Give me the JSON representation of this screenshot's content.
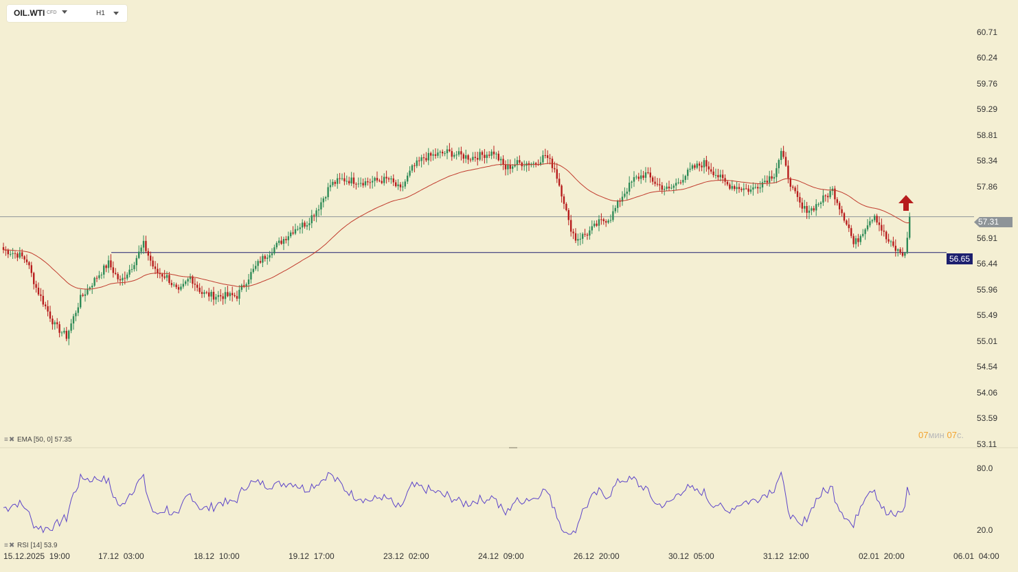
{
  "toolbar": {
    "symbol": "OIL.WTI",
    "symbol_type": "CFD",
    "timeframe": "H1"
  },
  "chart_data": [
    {
      "type": "candlestick",
      "instrument": "OIL.WTI",
      "timeframe": "H1",
      "y_ticks": [
        "60.71",
        "60.24",
        "59.76",
        "59.29",
        "58.81",
        "58.34",
        "57.86",
        "56.91",
        "56.44",
        "55.96",
        "55.49",
        "55.01",
        "54.54",
        "54.06",
        "53.59",
        "53.11"
      ],
      "ylim": [
        53.11,
        61.3
      ],
      "x_ticks": [
        "15.12.2025  19:00",
        "17.12  03:00",
        "18.12  10:00",
        "19.12  17:00",
        "23.12  02:00",
        "24.12  09:00",
        "26.12  20:00",
        "30.12  05:00",
        "31.12  12:00",
        "02.01  20:00",
        "06.01  04:00"
      ],
      "current_price": "57.31",
      "horizontal_line_price": "56.65",
      "close_anchors": [
        [
          0,
          56.7
        ],
        [
          7,
          56.6
        ],
        [
          10,
          56.5
        ],
        [
          14,
          56.0
        ],
        [
          22,
          55.3
        ],
        [
          27,
          55.1
        ],
        [
          33,
          55.8
        ],
        [
          40,
          56.2
        ],
        [
          45,
          56.45
        ],
        [
          50,
          56.1
        ],
        [
          55,
          56.4
        ],
        [
          60,
          56.8
        ],
        [
          65,
          56.3
        ],
        [
          70,
          56.2
        ],
        [
          75,
          55.9
        ],
        [
          80,
          56.2
        ],
        [
          85,
          55.9
        ],
        [
          90,
          55.85
        ],
        [
          100,
          55.85
        ],
        [
          105,
          56.2
        ],
        [
          110,
          56.5
        ],
        [
          115,
          56.7
        ],
        [
          120,
          56.9
        ],
        [
          125,
          57.1
        ],
        [
          130,
          57.2
        ],
        [
          135,
          57.5
        ],
        [
          140,
          57.9
        ],
        [
          145,
          58.0
        ],
        [
          155,
          57.95
        ],
        [
          165,
          58.0
        ],
        [
          170,
          57.8
        ],
        [
          175,
          58.2
        ],
        [
          180,
          58.4
        ],
        [
          190,
          58.5
        ],
        [
          200,
          58.4
        ],
        [
          210,
          58.5
        ],
        [
          215,
          58.2
        ],
        [
          220,
          58.3
        ],
        [
          228,
          58.3
        ],
        [
          232,
          58.45
        ],
        [
          236,
          58.2
        ],
        [
          240,
          57.6
        ],
        [
          242,
          57.2
        ],
        [
          245,
          56.9
        ],
        [
          250,
          57.0
        ],
        [
          255,
          57.2
        ],
        [
          260,
          57.3
        ],
        [
          265,
          57.7
        ],
        [
          270,
          58.0
        ],
        [
          275,
          58.1
        ],
        [
          280,
          57.9
        ],
        [
          285,
          57.8
        ],
        [
          290,
          58.0
        ],
        [
          295,
          58.2
        ],
        [
          300,
          58.3
        ],
        [
          305,
          58.1
        ],
        [
          310,
          57.9
        ],
        [
          315,
          57.85
        ],
        [
          320,
          57.8
        ],
        [
          325,
          57.95
        ],
        [
          330,
          58.1
        ],
        [
          333,
          58.5
        ],
        [
          335,
          58.2
        ],
        [
          338,
          57.8
        ],
        [
          342,
          57.45
        ],
        [
          346,
          57.45
        ],
        [
          350,
          57.6
        ],
        [
          355,
          57.8
        ],
        [
          358,
          57.5
        ],
        [
          362,
          57.1
        ],
        [
          364,
          56.8
        ],
        [
          366,
          56.9
        ],
        [
          370,
          57.2
        ],
        [
          373,
          57.35
        ],
        [
          378,
          56.9
        ],
        [
          382,
          56.7
        ],
        [
          386,
          56.6
        ],
        [
          388,
          57.31
        ]
      ],
      "ema": {
        "name": "EMA",
        "params": "[50, 0]",
        "value": "57.35",
        "line_color": "#c0392b"
      }
    },
    {
      "type": "line",
      "indicator": "RSI",
      "params": "[14]",
      "value": "53.9",
      "y_ticks": [
        "80.0",
        "20.0"
      ],
      "ylim": [
        0,
        100
      ],
      "line_color": "#5b43c9"
    }
  ],
  "indicators": {
    "ema_name": "EMA",
    "ema_params": "[50, 0]",
    "ema_value": "57.35",
    "rsi_name": "RSI",
    "rsi_params": "[14]",
    "rsi_value": "53.9"
  },
  "timer": {
    "minutes": "07",
    "min_unit": "мин",
    "seconds": "07",
    "sec_unit": "с."
  },
  "colors": {
    "background": "#f4efd3",
    "bull": "#2e8b57",
    "bear": "#b71c1c",
    "ema": "#c0392b",
    "rsi": "#5b43c9",
    "horizontal_line": "#1c1f6e",
    "current_price_tag": "#8e9498",
    "line_price_tag": "#1c1f6e",
    "signal_arrow": "#b71c1c"
  },
  "signal": {
    "icon": "up-arrow-icon"
  }
}
